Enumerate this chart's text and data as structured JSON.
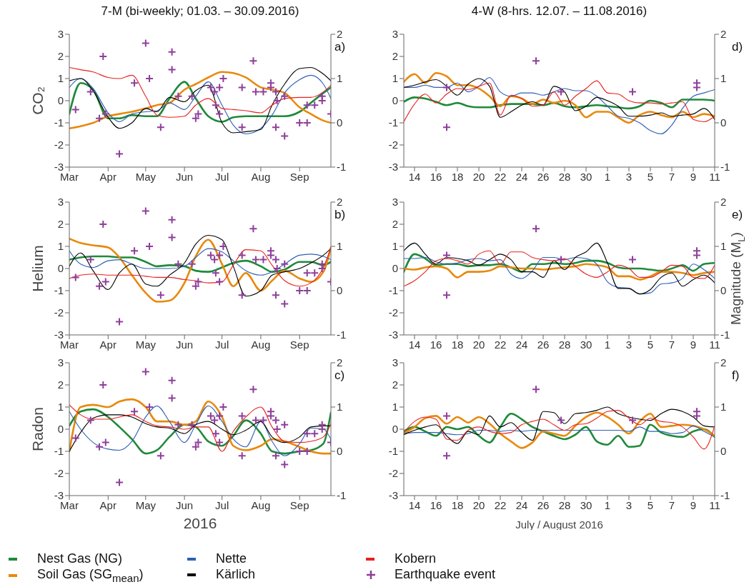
{
  "chart_data": [
    {
      "type": "line",
      "title": "7-M (bi-weekly; 01.03. – 30.09.2016)",
      "ylabel": "CO₂",
      "annotations": [
        "a)"
      ],
      "legend": "bottom",
      "xlim": [
        "2016-03-01",
        "2016-09-26"
      ],
      "xticks": [
        {
          "value": "2016-03-01",
          "label": "Mar"
        },
        {
          "value": "2016-04-01",
          "label": "Apr"
        },
        {
          "value": "2016-05-01",
          "label": "May"
        },
        {
          "value": "2016-06-01",
          "label": "Jun"
        },
        {
          "value": "2016-07-01",
          "label": "Jul"
        },
        {
          "value": "2016-08-01",
          "label": "Aug"
        },
        {
          "value": "2016-09-01",
          "label": "Sep"
        }
      ],
      "ylim": [
        -3,
        3
      ],
      "yticks": [
        -3,
        -2,
        -1,
        0,
        1,
        2,
        3
      ],
      "y2lim": [
        -1,
        2
      ],
      "y2ticks": [
        -1,
        0,
        1,
        2
      ],
      "marker": "none",
      "x": [
        "2016-03-01",
        "2016-03-10",
        "2016-03-20",
        "2016-04-01",
        "2016-04-10",
        "2016-04-20",
        "2016-05-01",
        "2016-05-10",
        "2016-05-20",
        "2016-06-01",
        "2016-06-10",
        "2016-06-20",
        "2016-07-01",
        "2016-07-10",
        "2016-07-20",
        "2016-08-01",
        "2016-08-10",
        "2016-08-20",
        "2016-09-01",
        "2016-09-10",
        "2016-09-20",
        "2016-09-26"
      ],
      "series": [
        {
          "name": "Nest Gas (NG)",
          "color": "#1f8a3a",
          "values": [
            -0.6,
            0.8,
            0.5,
            -0.8,
            -0.8,
            -0.65,
            -0.7,
            -0.7,
            0.1,
            0.85,
            0.1,
            -0.7,
            -0.95,
            -0.75,
            -0.7,
            -0.7,
            -0.7,
            -0.7,
            -0.5,
            -0.1,
            0.35,
            0.6
          ]
        },
        {
          "name": "Soil Gas (SG$_{mean}$)",
          "color": "#e8890c",
          "values": [
            -1.25,
            -1.15,
            -1.0,
            -0.7,
            -0.6,
            -0.5,
            -0.35,
            -0.2,
            -0.1,
            0.5,
            0.75,
            1.05,
            1.3,
            1.25,
            1.05,
            0.6,
            0.5,
            0.35,
            -0.3,
            -0.6,
            -0.9,
            -1.0
          ]
        },
        {
          "name": "Nette",
          "color": "#2f5fb5",
          "values": [
            0.6,
            1.0,
            0.55,
            -0.55,
            -0.95,
            -0.6,
            -0.5,
            -0.45,
            -0.1,
            -0.4,
            0.2,
            0.85,
            -0.2,
            -1.1,
            -1.5,
            -1.25,
            -0.65,
            0.35,
            0.95,
            1.15,
            0.75,
            0.1
          ]
        },
        {
          "name": "Kärlich",
          "color": "#000000",
          "values": [
            0.9,
            1.0,
            0.45,
            -0.75,
            -1.25,
            -1.0,
            -0.35,
            -0.5,
            0.15,
            -0.05,
            0.45,
            0.7,
            -1.0,
            -1.45,
            -1.4,
            -1.3,
            -0.2,
            0.75,
            1.45,
            1.5,
            1.2,
            0.9
          ]
        },
        {
          "name": "Kobern",
          "color": "#e8201e",
          "values": [
            1.5,
            1.4,
            1.3,
            1.05,
            1.0,
            1.15,
            0.2,
            -0.65,
            -0.75,
            -0.7,
            -0.2,
            0.1,
            -0.35,
            -0.4,
            -0.45,
            -0.55,
            -0.2,
            0.1,
            0.15,
            0.15,
            0.4,
            0.7
          ]
        },
        {
          "name": "Earthquake event",
          "type": "scatter",
          "marker": "cross",
          "axis": "y2",
          "color": "#8e3f9a",
          "x": [
            "2016-03-06",
            "2016-03-18",
            "2016-03-25",
            "2016-03-28",
            "2016-03-30",
            "2016-04-10",
            "2016-04-22",
            "2016-05-01",
            "2016-05-04",
            "2016-05-13",
            "2016-05-22",
            "2016-05-22",
            "2016-05-27",
            "2016-06-07",
            "2016-06-10",
            "2016-06-12",
            "2016-06-22",
            "2016-06-25",
            "2016-06-26",
            "2016-06-29",
            "2016-06-29",
            "2016-07-02",
            "2016-07-17",
            "2016-07-17",
            "2016-07-26",
            "2016-07-28",
            "2016-08-03",
            "2016-08-09",
            "2016-08-09",
            "2016-08-13",
            "2016-08-13",
            "2016-08-14",
            "2016-08-20",
            "2016-08-20",
            "2016-09-01",
            "2016-09-07",
            "2016-09-07",
            "2016-09-13",
            "2016-09-19",
            "2016-09-19",
            "2016-09-26"
          ],
          "values": [
            0.3,
            0.7,
            0.1,
            1.5,
            0.2,
            -0.7,
            0.9,
            1.8,
            1.0,
            -0.1,
            1.6,
            1.2,
            0.6,
            0.6,
            0.1,
            0.2,
            0.8,
            0.7,
            0.4,
            0.8,
            0.2,
            1.0,
            0.8,
            -0.1,
            1.4,
            0.7,
            0.7,
            0.9,
            0.8,
            -0.1,
            0.7,
            0.5,
            -0.3,
            0.6,
            0.0,
            0.0,
            0.4,
            0.4,
            0.6,
            0.5,
            0.2
          ]
        }
      ]
    },
    {
      "type": "line",
      "title": "4-W (8-hrs. 12.07. – 11.08.2016)",
      "annotations": [
        "d)"
      ],
      "xlim": [
        "2016-07-13",
        "2016-08-11"
      ],
      "xticks": [
        {
          "value": "2016-07-14",
          "label": "14"
        },
        {
          "value": "2016-07-16",
          "label": "16"
        },
        {
          "value": "2016-07-18",
          "label": "18"
        },
        {
          "value": "2016-07-20",
          "label": "20"
        },
        {
          "value": "2016-07-22",
          "label": "22"
        },
        {
          "value": "2016-07-24",
          "label": "24"
        },
        {
          "value": "2016-07-26",
          "label": "26"
        },
        {
          "value": "2016-07-28",
          "label": "28"
        },
        {
          "value": "2016-07-30",
          "label": "30"
        },
        {
          "value": "2016-08-01",
          "label": "1"
        },
        {
          "value": "2016-08-03",
          "label": "3"
        },
        {
          "value": "2016-08-05",
          "label": "5"
        },
        {
          "value": "2016-08-07",
          "label": "7"
        },
        {
          "value": "2016-08-09",
          "label": "9"
        },
        {
          "value": "2016-08-11",
          "label": "11"
        }
      ],
      "ylim": [
        -3,
        3
      ],
      "yticks": [
        -3,
        -2,
        -1,
        0,
        1,
        2,
        3
      ],
      "y2lim": [
        -1,
        2
      ],
      "y2ticks": [
        -1,
        0,
        1,
        2
      ],
      "marker": "none",
      "x": [
        "2016-07-13",
        "2016-07-14",
        "2016-07-15",
        "2016-07-16",
        "2016-07-17",
        "2016-07-18",
        "2016-07-19",
        "2016-07-20",
        "2016-07-21",
        "2016-07-22",
        "2016-07-23",
        "2016-07-24",
        "2016-07-25",
        "2016-07-26",
        "2016-07-27",
        "2016-07-28",
        "2016-07-29",
        "2016-07-30",
        "2016-07-31",
        "2016-08-01",
        "2016-08-02",
        "2016-08-03",
        "2016-08-04",
        "2016-08-05",
        "2016-08-06",
        "2016-08-07",
        "2016-08-08",
        "2016-08-09",
        "2016-08-10",
        "2016-08-11"
      ],
      "series": [
        {
          "color": "#1f8a3a",
          "values": [
            -0.05,
            0.15,
            0.1,
            -0.05,
            -0.2,
            -0.1,
            -0.25,
            -0.3,
            -0.3,
            -0.2,
            -0.15,
            -0.15,
            -0.15,
            -0.2,
            -0.1,
            -0.25,
            -0.3,
            -0.25,
            -0.2,
            -0.25,
            -0.3,
            -0.35,
            -0.25,
            0.0,
            -0.1,
            -0.3,
            0.05,
            0.05,
            0.05,
            0.0
          ]
        },
        {
          "color": "#e8890c",
          "values": [
            0.85,
            1.2,
            0.8,
            1.25,
            1.1,
            0.7,
            0.7,
            0.55,
            0.2,
            -0.25,
            0.2,
            0.1,
            -0.15,
            0.05,
            -0.1,
            0.0,
            -0.2,
            -0.75,
            -0.5,
            -0.5,
            -0.75,
            -1.0,
            -0.65,
            -0.5,
            -0.65,
            -0.75,
            -0.5,
            -0.75,
            -0.6,
            -0.7
          ]
        },
        {
          "color": "#2f5fb5",
          "values": [
            0.6,
            0.6,
            0.7,
            0.6,
            0.6,
            0.8,
            0.4,
            0.65,
            1.05,
            0.4,
            0.2,
            0.35,
            0.35,
            0.25,
            0.4,
            0.55,
            0.45,
            0.45,
            0.2,
            -0.25,
            -0.7,
            -0.8,
            -1.0,
            -1.35,
            -1.5,
            -1.1,
            -0.35,
            0.2,
            0.35,
            0.5
          ]
        },
        {
          "color": "#000000",
          "values": [
            0.6,
            0.7,
            0.85,
            0.95,
            0.65,
            0.25,
            0.75,
            1.0,
            0.65,
            -0.75,
            -0.5,
            -0.2,
            -0.05,
            -0.2,
            0.65,
            0.4,
            -0.45,
            -0.25,
            0.15,
            0.0,
            -0.25,
            -0.7,
            -0.7,
            -0.65,
            -0.55,
            -0.7,
            -0.65,
            -0.6,
            -0.35,
            -0.85
          ]
        },
        {
          "color": "#e8201e",
          "values": [
            -0.95,
            -0.15,
            0.3,
            -0.1,
            0.3,
            0.55,
            0.5,
            0.65,
            0.8,
            -0.65,
            0.25,
            0.1,
            -0.25,
            -0.2,
            0.4,
            -0.2,
            0.2,
            0.55,
            0.9,
            0.35,
            0.3,
            0.0,
            -0.1,
            -0.1,
            -0.15,
            -0.1,
            -0.05,
            -0.85,
            -0.95,
            -0.7
          ]
        },
        {
          "type": "scatter",
          "marker": "cross",
          "axis": "y2",
          "color": "#8e3f9a",
          "x": [
            "2016-07-17",
            "2016-07-17",
            "2016-07-25T08:00",
            "2016-07-27T16:00",
            "2016-08-03T08:00",
            "2016-08-09T08:00",
            "2016-08-09T08:00"
          ],
          "values": [
            -0.1,
            0.8,
            1.4,
            0.7,
            0.7,
            0.9,
            0.8
          ]
        }
      ]
    },
    {
      "type": "line",
      "ylabel": "Helium",
      "annotations": [
        "b)"
      ],
      "xlim": [
        "2016-03-01",
        "2016-09-26"
      ],
      "xticks": [
        {
          "value": "2016-03-01",
          "label": "Mar"
        },
        {
          "value": "2016-04-01",
          "label": "Apr"
        },
        {
          "value": "2016-05-01",
          "label": "May"
        },
        {
          "value": "2016-06-01",
          "label": "Jun"
        },
        {
          "value": "2016-07-01",
          "label": "Jul"
        },
        {
          "value": "2016-08-01",
          "label": "Aug"
        },
        {
          "value": "2016-09-01",
          "label": "Sep"
        }
      ],
      "ylim": [
        -3,
        3
      ],
      "yticks": [
        -3,
        -2,
        -1,
        0,
        1,
        2,
        3
      ],
      "y2lim": [
        -1,
        2
      ],
      "y2ticks": [
        -1,
        0,
        1,
        2
      ],
      "marker": "none",
      "x": [
        "2016-03-01",
        "2016-03-10",
        "2016-03-20",
        "2016-04-01",
        "2016-04-10",
        "2016-04-20",
        "2016-05-01",
        "2016-05-10",
        "2016-05-20",
        "2016-06-01",
        "2016-06-10",
        "2016-06-20",
        "2016-07-01",
        "2016-07-10",
        "2016-07-20",
        "2016-08-01",
        "2016-08-10",
        "2016-08-20",
        "2016-09-01",
        "2016-09-10",
        "2016-09-20",
        "2016-09-26"
      ],
      "series": [
        {
          "color": "#1f8a3a",
          "values": [
            0.4,
            0.5,
            0.55,
            0.55,
            0.5,
            0.5,
            0.3,
            0.1,
            0.15,
            0.1,
            -0.1,
            -0.15,
            0.05,
            0.25,
            0.35,
            0.1,
            -0.15,
            -0.05,
            0.3,
            0.3,
            0.15,
            0.3
          ]
        },
        {
          "color": "#e8890c",
          "values": [
            1.35,
            1.15,
            1.05,
            0.95,
            0.5,
            -0.3,
            -1.1,
            -1.5,
            -1.45,
            -0.65,
            0.55,
            1.3,
            0.2,
            -0.8,
            -0.2,
            -1.0,
            -0.55,
            -0.1,
            -0.45,
            -0.6,
            -0.15,
            0.95
          ]
        },
        {
          "color": "#2f5fb5",
          "values": [
            0.8,
            0.2,
            0.05,
            0.35,
            0.4,
            0.2,
            0.0,
            0.0,
            0.0,
            0.1,
            0.5,
            0.9,
            0.75,
            0.35,
            -0.1,
            -0.3,
            -0.15,
            0.2,
            0.6,
            0.65,
            0.55,
            0.4
          ]
        },
        {
          "color": "#000000",
          "values": [
            0.1,
            0.7,
            -0.1,
            -0.95,
            -0.2,
            0.2,
            -0.7,
            -0.8,
            -0.3,
            0.25,
            1.1,
            1.5,
            1.3,
            0.1,
            -1.25,
            -1.0,
            -0.3,
            -0.15,
            0.0,
            0.25,
            0.6,
            0.9
          ]
        },
        {
          "color": "#e8201e",
          "values": [
            -0.45,
            -0.3,
            -0.25,
            -0.3,
            -0.3,
            -0.3,
            -0.35,
            -0.4,
            -0.4,
            -0.5,
            -0.55,
            -0.65,
            -0.6,
            0.15,
            0.85,
            0.8,
            0.15,
            -0.55,
            -0.8,
            -0.65,
            0.05,
            0.95
          ]
        },
        {
          "type": "scatter",
          "marker": "cross",
          "axis": "y2",
          "color": "#8e3f9a",
          "x": [
            "2016-03-06",
            "2016-03-18",
            "2016-03-25",
            "2016-03-28",
            "2016-03-30",
            "2016-04-10",
            "2016-04-22",
            "2016-05-01",
            "2016-05-04",
            "2016-05-13",
            "2016-05-22",
            "2016-05-22",
            "2016-05-27",
            "2016-06-07",
            "2016-06-10",
            "2016-06-12",
            "2016-06-22",
            "2016-06-25",
            "2016-06-26",
            "2016-06-29",
            "2016-06-29",
            "2016-07-02",
            "2016-07-17",
            "2016-07-17",
            "2016-07-26",
            "2016-07-28",
            "2016-08-03",
            "2016-08-09",
            "2016-08-09",
            "2016-08-13",
            "2016-08-13",
            "2016-08-14",
            "2016-08-20",
            "2016-08-20",
            "2016-09-01",
            "2016-09-07",
            "2016-09-07",
            "2016-09-13",
            "2016-09-19",
            "2016-09-19",
            "2016-09-26"
          ],
          "values": [
            0.3,
            0.7,
            0.1,
            1.5,
            0.2,
            -0.7,
            0.9,
            1.8,
            1.0,
            -0.1,
            1.6,
            1.2,
            0.6,
            0.6,
            0.1,
            0.2,
            0.8,
            0.7,
            0.4,
            0.8,
            0.2,
            1.0,
            0.8,
            -0.1,
            1.4,
            0.7,
            0.7,
            0.9,
            0.8,
            -0.1,
            0.7,
            0.5,
            -0.3,
            0.6,
            0.0,
            0.0,
            0.4,
            0.4,
            0.6,
            0.5,
            0.2
          ]
        }
      ]
    },
    {
      "type": "line",
      "y2label": "Magnitude (M$_{L}$)",
      "annotations": [
        "e)"
      ],
      "xlim": [
        "2016-07-13",
        "2016-08-11"
      ],
      "xticks": [
        {
          "value": "2016-07-14",
          "label": "14"
        },
        {
          "value": "2016-07-16",
          "label": "16"
        },
        {
          "value": "2016-07-18",
          "label": "18"
        },
        {
          "value": "2016-07-20",
          "label": "20"
        },
        {
          "value": "2016-07-22",
          "label": "22"
        },
        {
          "value": "2016-07-24",
          "label": "24"
        },
        {
          "value": "2016-07-26",
          "label": "26"
        },
        {
          "value": "2016-07-28",
          "label": "28"
        },
        {
          "value": "2016-07-30",
          "label": "30"
        },
        {
          "value": "2016-08-01",
          "label": "1"
        },
        {
          "value": "2016-08-03",
          "label": "3"
        },
        {
          "value": "2016-08-05",
          "label": "5"
        },
        {
          "value": "2016-08-07",
          "label": "7"
        },
        {
          "value": "2016-08-09",
          "label": "9"
        },
        {
          "value": "2016-08-11",
          "label": "11"
        }
      ],
      "ylim": [
        -3,
        3
      ],
      "yticks": [
        -3,
        -2,
        -1,
        0,
        1,
        2,
        3
      ],
      "y2lim": [
        -1,
        2
      ],
      "y2ticks": [
        -1,
        0,
        1,
        2
      ],
      "marker": "none",
      "x": [
        "2016-07-13",
        "2016-07-14",
        "2016-07-15",
        "2016-07-16",
        "2016-07-17",
        "2016-07-18",
        "2016-07-19",
        "2016-07-20",
        "2016-07-21",
        "2016-07-22",
        "2016-07-23",
        "2016-07-24",
        "2016-07-25",
        "2016-07-26",
        "2016-07-27",
        "2016-07-28",
        "2016-07-29",
        "2016-07-30",
        "2016-07-31",
        "2016-08-01",
        "2016-08-02",
        "2016-08-03",
        "2016-08-04",
        "2016-08-05",
        "2016-08-06",
        "2016-08-07",
        "2016-08-08",
        "2016-08-09",
        "2016-08-10",
        "2016-08-11"
      ],
      "series": [
        {
          "color": "#1f8a3a",
          "values": [
            -0.15,
            0.65,
            0.45,
            0.15,
            0.2,
            0.2,
            0.1,
            0.15,
            0.15,
            0.2,
            0.05,
            -0.15,
            0.2,
            0.2,
            0.25,
            0.2,
            0.25,
            0.35,
            0.35,
            0.25,
            0.05,
            0.0,
            0.0,
            -0.05,
            -0.1,
            0.0,
            0.15,
            -0.1,
            0.2,
            0.25
          ]
        },
        {
          "color": "#e8890c",
          "values": [
            0.0,
            -0.05,
            0.05,
            0.1,
            0.0,
            -0.4,
            -0.15,
            -0.15,
            -0.1,
            0.1,
            0.05,
            0.0,
            0.0,
            -0.05,
            0.0,
            0.05,
            0.1,
            0.2,
            0.15,
            0.05,
            -0.35,
            -0.35,
            -0.5,
            -0.35,
            -0.15,
            -0.15,
            -0.2,
            -0.3,
            -0.2,
            -0.15
          ]
        },
        {
          "color": "#2f5fb5",
          "values": [
            0.45,
            0.45,
            0.5,
            0.3,
            0.2,
            0.25,
            0.4,
            0.45,
            0.35,
            0.4,
            -0.25,
            -0.45,
            -0.1,
            0.5,
            0.5,
            0.4,
            0.5,
            0.45,
            0.2,
            -0.6,
            -0.85,
            -0.9,
            -1.15,
            -1.1,
            -0.7,
            -0.65,
            -0.45,
            0.2,
            -0.05,
            -0.45
          ]
        },
        {
          "color": "#000000",
          "values": [
            0.8,
            1.15,
            0.65,
            0.2,
            0.5,
            0.45,
            0.35,
            0.15,
            0.4,
            0.65,
            0.4,
            -0.15,
            -0.15,
            -0.4,
            0.35,
            -0.05,
            0.5,
            0.75,
            1.15,
            0.25,
            -0.9,
            -0.9,
            -1.15,
            -0.95,
            -0.4,
            -0.2,
            -0.8,
            -0.5,
            -0.3,
            -0.65
          ]
        },
        {
          "color": "#e8201e",
          "values": [
            -0.8,
            -0.55,
            -0.15,
            0.35,
            0.45,
            0.35,
            0.2,
            0.65,
            0.8,
            0.2,
            0.75,
            0.75,
            0.5,
            0.4,
            0.35,
            0.45,
            0.1,
            -0.25,
            -0.4,
            -0.15,
            0.15,
            0.0,
            -0.4,
            -0.4,
            -0.15,
            0.15,
            0.1,
            -0.4,
            -0.45,
            0.15
          ]
        },
        {
          "type": "scatter",
          "marker": "cross",
          "axis": "y2",
          "color": "#8e3f9a",
          "x": [
            "2016-07-17",
            "2016-07-17",
            "2016-07-25T08:00",
            "2016-07-27T16:00",
            "2016-08-03T08:00",
            "2016-08-09T08:00",
            "2016-08-09T08:00"
          ],
          "values": [
            -0.1,
            0.8,
            1.4,
            0.7,
            0.7,
            0.9,
            0.8
          ]
        }
      ]
    },
    {
      "type": "line",
      "ylabel": "Radon",
      "xlabel": "2016",
      "annotations": [
        "c)"
      ],
      "xlim": [
        "2016-03-01",
        "2016-09-26"
      ],
      "xticks": [
        {
          "value": "2016-03-01",
          "label": "Mar"
        },
        {
          "value": "2016-04-01",
          "label": "Apr"
        },
        {
          "value": "2016-05-01",
          "label": "May"
        },
        {
          "value": "2016-06-01",
          "label": "Jun"
        },
        {
          "value": "2016-07-01",
          "label": "Jul"
        },
        {
          "value": "2016-08-01",
          "label": "Aug"
        },
        {
          "value": "2016-09-01",
          "label": "Sep"
        }
      ],
      "ylim": [
        -3,
        3
      ],
      "yticks": [
        -3,
        -2,
        -1,
        0,
        1,
        2,
        3
      ],
      "y2lim": [
        -1,
        2
      ],
      "y2ticks": [
        -1,
        0,
        1,
        2
      ],
      "marker": "none",
      "x": [
        "2016-03-01",
        "2016-03-10",
        "2016-03-20",
        "2016-04-01",
        "2016-04-10",
        "2016-04-20",
        "2016-05-01",
        "2016-05-10",
        "2016-05-20",
        "2016-06-01",
        "2016-06-10",
        "2016-06-20",
        "2016-07-01",
        "2016-07-10",
        "2016-07-20",
        "2016-08-01",
        "2016-08-10",
        "2016-08-20",
        "2016-09-01",
        "2016-09-10",
        "2016-09-20",
        "2016-09-26"
      ],
      "series": [
        {
          "color": "#1f8a3a",
          "values": [
            0.15,
            0.8,
            0.9,
            0.55,
            0.1,
            -0.45,
            -1.1,
            -0.95,
            -0.35,
            0.2,
            0.1,
            -0.55,
            -0.75,
            -0.3,
            0.4,
            -0.2,
            -1.0,
            -1.1,
            -1.0,
            -0.95,
            -0.65,
            0.75
          ]
        },
        {
          "color": "#e8890c",
          "values": [
            -1.0,
            1.0,
            1.1,
            1.0,
            1.25,
            1.35,
            1.0,
            0.35,
            0.35,
            0.2,
            0.35,
            1.25,
            0.55,
            -0.75,
            -0.95,
            -0.75,
            -0.45,
            -0.55,
            -0.8,
            -1.0,
            -1.1,
            -1.1
          ]
        },
        {
          "color": "#2f5fb5",
          "values": [
            0.8,
            0.0,
            -0.6,
            -0.9,
            -0.95,
            -0.55,
            0.55,
            1.05,
            0.35,
            -0.6,
            0.2,
            1.05,
            0.35,
            -0.45,
            -0.8,
            0.35,
            -0.55,
            -1.2,
            -0.65,
            0.05,
            0.0,
            -0.45
          ]
        },
        {
          "color": "#000000",
          "values": [
            -1.0,
            -0.15,
            0.5,
            0.65,
            0.65,
            0.55,
            0.25,
            0.1,
            0.05,
            -0.2,
            0.2,
            0.35,
            0.0,
            -0.25,
            -0.05,
            0.35,
            -0.35,
            -0.6,
            -0.35,
            0.1,
            0.15,
            0.15
          ]
        },
        {
          "color": "#e8201e",
          "values": [
            1.1,
            0.65,
            0.45,
            0.45,
            0.55,
            0.65,
            0.35,
            0.15,
            0.1,
            0.0,
            0.1,
            0.1,
            -1.0,
            -0.1,
            0.55,
            1.0,
            0.1,
            -0.55,
            -0.6,
            -0.55,
            -0.35,
            0.25
          ]
        },
        {
          "type": "scatter",
          "marker": "cross",
          "axis": "y2",
          "color": "#8e3f9a",
          "x": [
            "2016-03-06",
            "2016-03-18",
            "2016-03-25",
            "2016-03-28",
            "2016-03-30",
            "2016-04-10",
            "2016-04-22",
            "2016-05-01",
            "2016-05-04",
            "2016-05-13",
            "2016-05-22",
            "2016-05-22",
            "2016-05-27",
            "2016-06-07",
            "2016-06-10",
            "2016-06-12",
            "2016-06-22",
            "2016-06-25",
            "2016-06-26",
            "2016-06-29",
            "2016-06-29",
            "2016-07-02",
            "2016-07-17",
            "2016-07-17",
            "2016-07-26",
            "2016-07-28",
            "2016-08-03",
            "2016-08-09",
            "2016-08-09",
            "2016-08-13",
            "2016-08-13",
            "2016-08-14",
            "2016-08-20",
            "2016-08-20",
            "2016-09-01",
            "2016-09-07",
            "2016-09-07",
            "2016-09-13",
            "2016-09-19",
            "2016-09-19",
            "2016-09-26"
          ],
          "values": [
            0.3,
            0.7,
            0.1,
            1.5,
            0.2,
            -0.7,
            0.9,
            1.8,
            1.0,
            -0.1,
            1.6,
            1.2,
            0.6,
            0.6,
            0.1,
            0.2,
            0.8,
            0.7,
            0.4,
            0.8,
            0.2,
            1.0,
            0.8,
            -0.1,
            1.4,
            0.7,
            0.7,
            0.9,
            0.8,
            -0.1,
            0.7,
            0.5,
            -0.3,
            0.6,
            0.0,
            0.0,
            0.4,
            0.4,
            0.6,
            0.5,
            0.2
          ]
        }
      ]
    },
    {
      "type": "line",
      "xlabel": "July / August 2016",
      "annotations": [
        "f)"
      ],
      "xlim": [
        "2016-07-13",
        "2016-08-11"
      ],
      "xticks": [
        {
          "value": "2016-07-14",
          "label": "14"
        },
        {
          "value": "2016-07-16",
          "label": "16"
        },
        {
          "value": "2016-07-18",
          "label": "18"
        },
        {
          "value": "2016-07-20",
          "label": "20"
        },
        {
          "value": "2016-07-22",
          "label": "22"
        },
        {
          "value": "2016-07-24",
          "label": "24"
        },
        {
          "value": "2016-07-26",
          "label": "26"
        },
        {
          "value": "2016-07-28",
          "label": "28"
        },
        {
          "value": "2016-07-30",
          "label": "30"
        },
        {
          "value": "2016-08-01",
          "label": "1"
        },
        {
          "value": "2016-08-03",
          "label": "3"
        },
        {
          "value": "2016-08-05",
          "label": "5"
        },
        {
          "value": "2016-08-07",
          "label": "7"
        },
        {
          "value": "2016-08-09",
          "label": "9"
        },
        {
          "value": "2016-08-11",
          "label": "11"
        }
      ],
      "ylim": [
        -3,
        3
      ],
      "yticks": [
        -3,
        -2,
        -1,
        0,
        1,
        2,
        3
      ],
      "y2lim": [
        -1,
        2
      ],
      "y2ticks": [
        -1,
        0,
        1,
        2
      ],
      "marker": "none",
      "x": [
        "2016-07-13",
        "2016-07-14",
        "2016-07-15",
        "2016-07-16",
        "2016-07-17",
        "2016-07-18",
        "2016-07-19",
        "2016-07-20",
        "2016-07-21",
        "2016-07-22",
        "2016-07-23",
        "2016-07-24",
        "2016-07-25",
        "2016-07-26",
        "2016-07-27",
        "2016-07-28",
        "2016-07-29",
        "2016-07-30",
        "2016-07-31",
        "2016-08-01",
        "2016-08-02",
        "2016-08-03",
        "2016-08-04",
        "2016-08-05",
        "2016-08-06",
        "2016-08-07",
        "2016-08-08",
        "2016-08-09",
        "2016-08-10",
        "2016-08-11"
      ],
      "series": [
        {
          "color": "#1f8a3a",
          "values": [
            -0.1,
            0.1,
            -0.1,
            -0.3,
            0.1,
            0.0,
            0.1,
            -0.3,
            -0.6,
            0.1,
            0.7,
            0.45,
            0.1,
            -0.1,
            -0.3,
            -0.45,
            -0.25,
            0.1,
            -0.55,
            -0.7,
            -0.3,
            -0.8,
            -0.75,
            0.2,
            -0.15,
            -0.3,
            -0.35,
            -0.1,
            0.0,
            -0.35
          ]
        },
        {
          "color": "#e8890c",
          "values": [
            -0.2,
            0.1,
            0.5,
            0.6,
            0.25,
            0.55,
            0.3,
            0.55,
            0.25,
            -0.2,
            -0.55,
            -0.85,
            -0.6,
            -0.1,
            -0.2,
            -0.3,
            0.15,
            0.55,
            0.75,
            0.55,
            0.2,
            -0.2,
            0.35,
            0.7,
            0.1,
            0.15,
            0.2,
            0.15,
            0.0,
            -0.3
          ]
        },
        {
          "color": "#2f5fb5",
          "values": [
            -0.2,
            -0.15,
            -0.15,
            -0.15,
            -0.2,
            -0.25,
            -0.2,
            -0.05,
            -0.05,
            -0.1,
            -0.05,
            -0.1,
            -0.05,
            -0.05,
            -0.05,
            -0.05,
            -0.05,
            -0.05,
            -0.05,
            -0.05,
            -0.05,
            -0.1,
            0.1,
            -0.1,
            -0.1,
            -0.2,
            -0.15,
            0.15,
            -0.1,
            -0.35
          ]
        },
        {
          "color": "#000000",
          "values": [
            -0.25,
            -0.05,
            0.1,
            0.2,
            -0.3,
            -0.65,
            -0.1,
            -0.25,
            0.6,
            0.1,
            0.3,
            -0.15,
            -0.5,
            0.8,
            0.75,
            0.25,
            0.7,
            0.75,
            0.85,
            1.0,
            0.7,
            0.55,
            0.45,
            0.4,
            0.7,
            0.9,
            0.8,
            0.55,
            0.15,
            0.1
          ]
        },
        {
          "color": "#e8201e",
          "values": [
            -0.15,
            0.35,
            0.55,
            0.45,
            -0.45,
            -0.5,
            -0.05,
            0.1,
            -0.1,
            -0.2,
            -0.15,
            0.2,
            0.35,
            0.45,
            0.2,
            -0.05,
            0.2,
            0.25,
            0.5,
            0.8,
            0.85,
            0.5,
            0.2,
            0.5,
            0.35,
            0.3,
            0.1,
            -0.35,
            -0.9,
            0.15
          ]
        },
        {
          "type": "scatter",
          "marker": "cross",
          "axis": "y2",
          "color": "#8e3f9a",
          "x": [
            "2016-07-17",
            "2016-07-17",
            "2016-07-25T08:00",
            "2016-07-27T16:00",
            "2016-08-03T08:00",
            "2016-08-09T08:00",
            "2016-08-09T08:00"
          ],
          "values": [
            -0.1,
            0.8,
            1.4,
            0.7,
            0.7,
            0.9,
            0.8
          ]
        }
      ]
    }
  ]
}
